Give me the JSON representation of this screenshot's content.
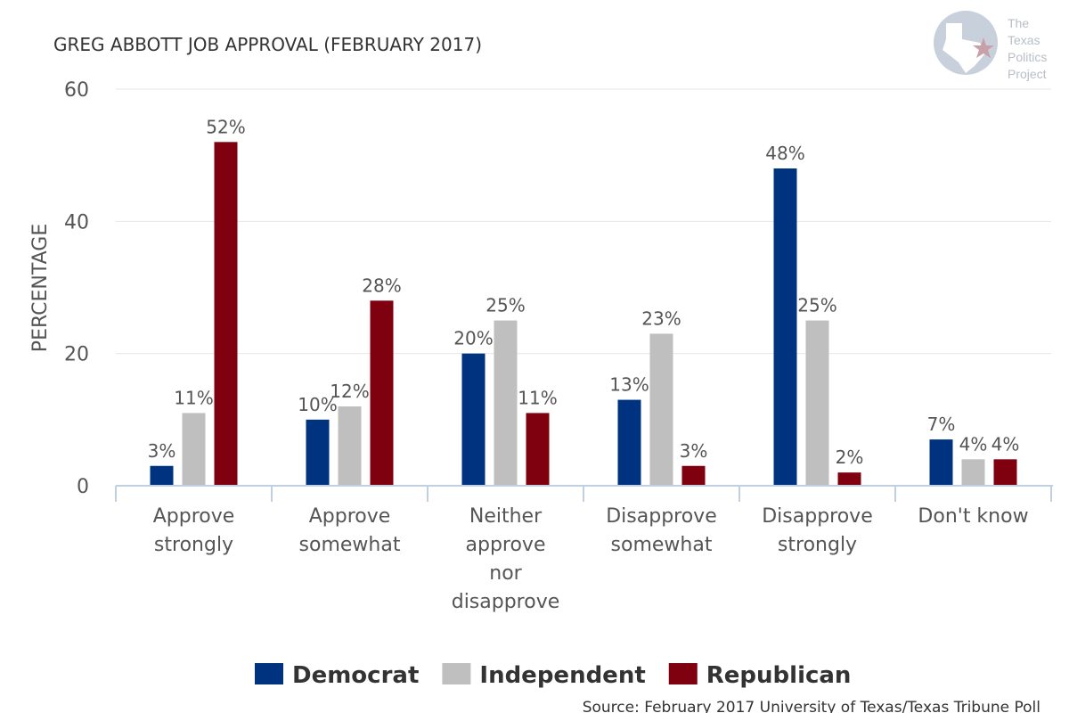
{
  "title": "GREG ABBOTT JOB APPROVAL (FEBRUARY 2017)",
  "source": "Source: February 2017 University of Texas/Texas Tribune Poll",
  "logo": {
    "lines": [
      "The",
      "Texas",
      "Politics",
      "Project"
    ]
  },
  "colors": {
    "Democrat": "#00337f",
    "Independent": "#bfbfbf",
    "Republican": "#7f000f"
  },
  "chart_data": {
    "type": "bar",
    "ylabel": "PERCENTAGE",
    "ylim": [
      0,
      60
    ],
    "yticks": [
      "0",
      "20",
      "40",
      "60"
    ],
    "grid": true,
    "legend_position": "bottom",
    "categories": [
      [
        "Approve",
        "strongly"
      ],
      [
        "Approve",
        "somewhat"
      ],
      [
        "Neither",
        "approve",
        "nor",
        "disapprove"
      ],
      [
        "Disapprove",
        "somewhat"
      ],
      [
        "Disapprove",
        "strongly"
      ],
      [
        "Don't know"
      ]
    ],
    "series": [
      {
        "name": "Democrat",
        "values": [
          3,
          10,
          20,
          13,
          48,
          7
        ],
        "labels": [
          "3%",
          "10%",
          "20%",
          "13%",
          "48%",
          "7%"
        ]
      },
      {
        "name": "Independent",
        "values": [
          11,
          12,
          25,
          23,
          25,
          4
        ],
        "labels": [
          "11%",
          "12%",
          "25%",
          "23%",
          "25%",
          "4%"
        ]
      },
      {
        "name": "Republican",
        "values": [
          52,
          28,
          11,
          3,
          2,
          4
        ],
        "labels": [
          "52%",
          "28%",
          "11%",
          "3%",
          "2%",
          "4%"
        ]
      }
    ]
  }
}
